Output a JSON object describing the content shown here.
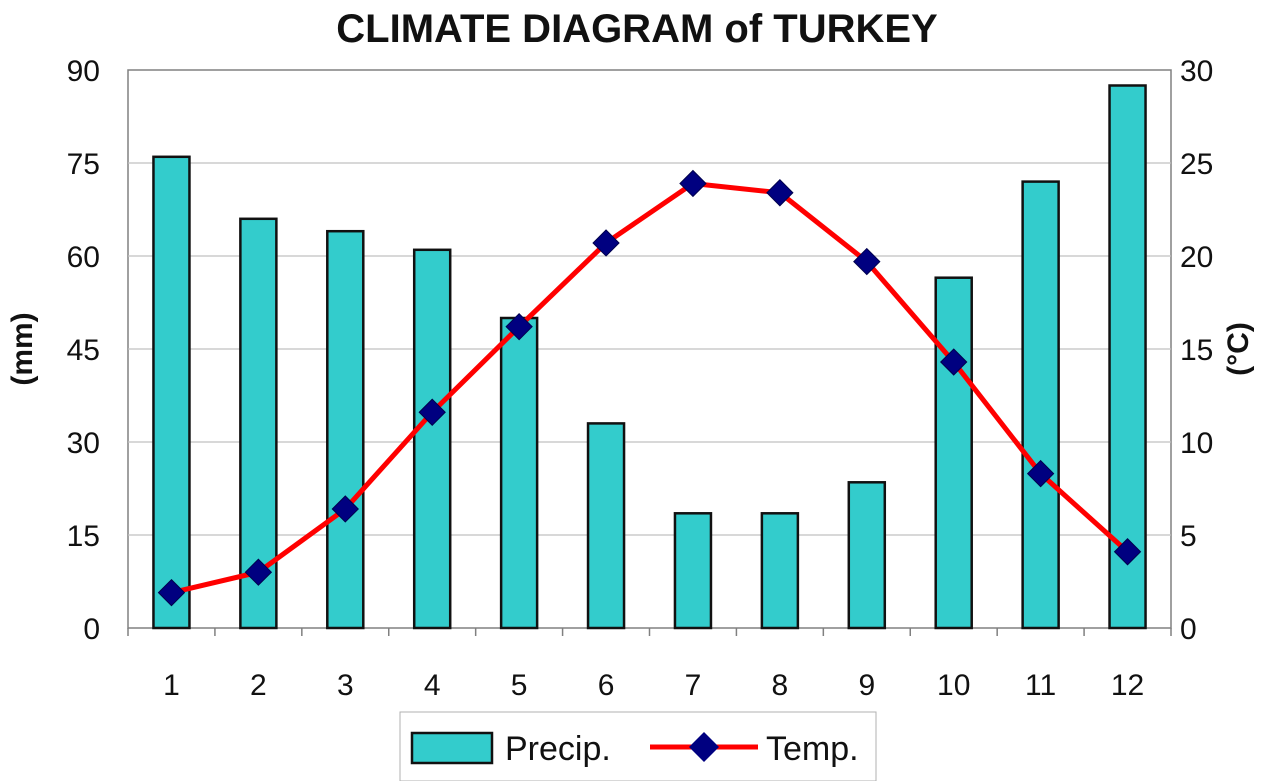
{
  "colors": {
    "bar_fill": "#33CCCC",
    "bar_stroke": "#111111",
    "line": "#FF0000",
    "marker": "#000080",
    "grid": "#C0C0C0"
  },
  "chart_data": {
    "type": "bar",
    "title": "CLIMATE DIAGRAM of TURKEY",
    "categories": [
      "1",
      "2",
      "3",
      "4",
      "5",
      "6",
      "7",
      "8",
      "9",
      "10",
      "11",
      "12"
    ],
    "series": [
      {
        "name": "Precip.",
        "type": "bar",
        "axis": "left",
        "values": [
          76,
          66,
          64,
          61,
          50,
          33,
          18.5,
          18.5,
          23.5,
          56.5,
          72,
          87.5
        ]
      },
      {
        "name": "Temp.",
        "type": "line",
        "axis": "right",
        "values": [
          1.9,
          3.0,
          6.4,
          11.6,
          16.2,
          20.7,
          23.9,
          23.4,
          19.7,
          14.3,
          8.3,
          4.1
        ]
      }
    ],
    "ylabel": "(mm)",
    "ylabel_right": "(°C)",
    "ylim": [
      0,
      90
    ],
    "ylim_right": [
      0,
      30
    ],
    "yticks": [
      "0",
      "15",
      "30",
      "45",
      "60",
      "75",
      "90"
    ],
    "yticks_right": [
      "0",
      "5",
      "10",
      "15",
      "20",
      "25",
      "30"
    ],
    "grid": true,
    "legend_position": "bottom"
  }
}
